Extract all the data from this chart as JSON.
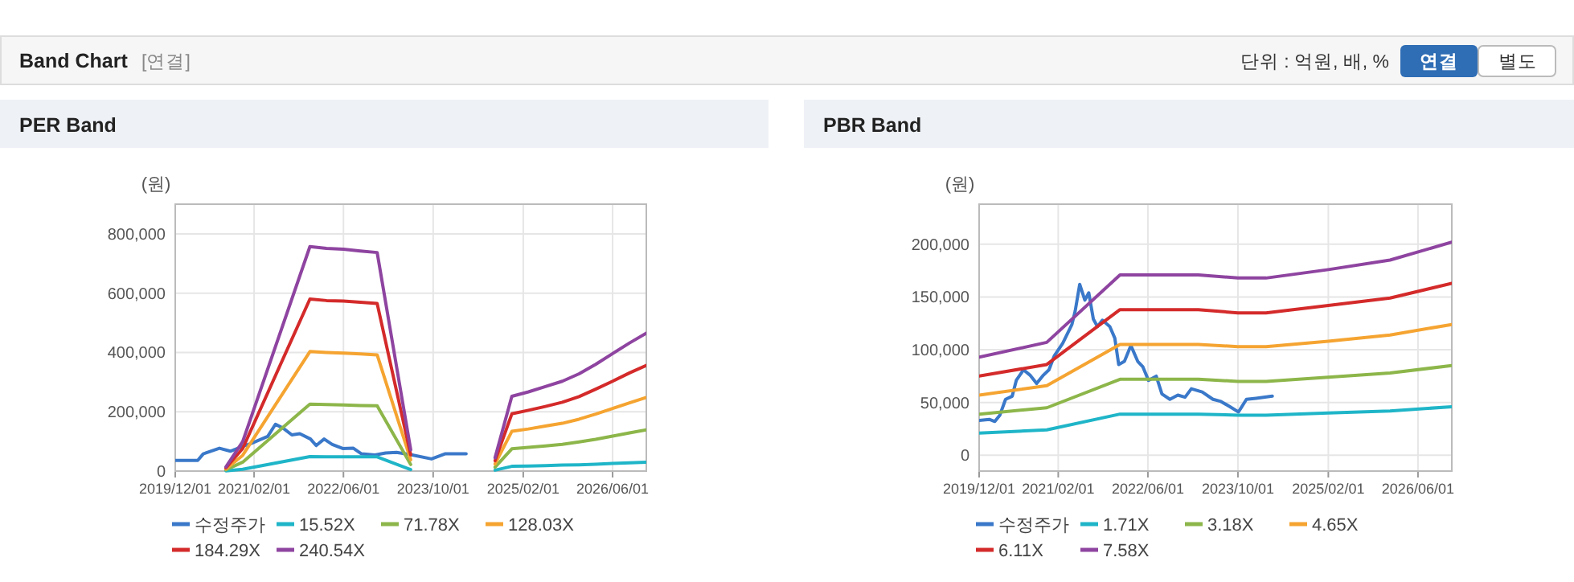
{
  "chart_data": [
    {
      "type": "line",
      "title": "PER Band",
      "ylabel": "(원)",
      "annotations": [
        "Band Chart",
        "[연결]",
        "단위 : 억원, 배, %",
        "연결",
        "별도"
      ],
      "xlim": [
        "2019-12-01",
        "2026-12-01"
      ],
      "ylim": [
        0,
        900000
      ],
      "xticks": [
        {
          "value": "2019-12-01",
          "label": "2019/12/01"
        },
        {
          "value": "2021-02-01",
          "label": "2021/02/01"
        },
        {
          "value": "2022-06-01",
          "label": "2022/06/01"
        },
        {
          "value": "2023-10-01",
          "label": "2023/10/01"
        },
        {
          "value": "2025-02-01",
          "label": "2025/02/01"
        },
        {
          "value": "2026-06-01",
          "label": "2026/06/01"
        }
      ],
      "yticks": [
        0,
        {
          "value": 200000,
          "label": "200,000"
        },
        {
          "value": 400000,
          "label": "400,000"
        },
        {
          "value": 600000,
          "label": "600,000"
        },
        {
          "value": 800000,
          "label": "800,000"
        }
      ],
      "grid": true,
      "legend": "bottom",
      "x": [
        "2020-09-01",
        "2020-12-01",
        "2021-12-01",
        "2022-03-01",
        "2022-06-01",
        "2022-09-01",
        "2022-12-01",
        "2023-06-01",
        "2024-03-01",
        "2024-09-01",
        "2024-12-01",
        "2025-03-01",
        "2025-06-01",
        "2025-09-01",
        "2025-12-01",
        "2026-03-01",
        "2026-06-01",
        "2026-09-01",
        "2026-12-01"
      ],
      "series": [
        {
          "name": "수정주가",
          "color": "#3a78c9",
          "x": [
            "2019-12-01",
            "2020-04-01",
            "2020-05-01",
            "2020-07-28",
            "2020-09-25",
            "2020-11-22",
            "2021-01-19",
            "2021-04-16",
            "2021-05-28",
            "2021-07-10",
            "2021-08-25",
            "2021-10-07",
            "2021-12-04",
            "2022-01-04",
            "2022-02-16",
            "2022-04-01",
            "2022-05-28",
            "2022-07-25",
            "2022-09-07",
            "2022-11-19",
            "2023-01-16",
            "2023-03-16",
            "2023-06-10",
            "2023-09-22",
            "2023-12-04",
            "2024-03-28"
          ],
          "values": [
            36000,
            36000,
            58000,
            77000,
            67000,
            81000,
            94000,
            117000,
            158000,
            144000,
            122000,
            126000,
            108000,
            86000,
            108000,
            90000,
            76000,
            77000,
            58000,
            54000,
            61000,
            63000,
            54000,
            41000,
            58000,
            58000
          ]
        },
        {
          "name": "15.52X",
          "color": "#1fb5c8",
          "values": [
            1000,
            6000,
            49000,
            48000,
            48000,
            48000,
            48000,
            5000,
            null,
            3000,
            16000,
            17000,
            18000,
            20000,
            21000,
            23000,
            26000,
            28000,
            30000
          ]
        },
        {
          "name": "71.78X",
          "color": "#8db64a",
          "values": [
            4000,
            30000,
            226000,
            224000,
            223000,
            221000,
            220000,
            22000,
            null,
            13000,
            75000,
            80000,
            85000,
            90000,
            98000,
            107000,
            118000,
            129000,
            139000
          ]
        },
        {
          "name": "128.03X",
          "color": "#f5a431",
          "values": [
            7000,
            53000,
            403000,
            400000,
            398000,
            395000,
            392000,
            38000,
            null,
            24000,
            134000,
            142000,
            152000,
            161000,
            175000,
            192000,
            211000,
            230000,
            248000
          ]
        },
        {
          "name": "184.29X",
          "color": "#d42a2a",
          "values": [
            11000,
            76000,
            580000,
            575000,
            573000,
            569000,
            565000,
            55000,
            null,
            35000,
            193000,
            205000,
            218000,
            232000,
            251000,
            276000,
            303000,
            331000,
            356000
          ]
        },
        {
          "name": "240.54X",
          "color": "#8e44a0",
          "values": [
            14000,
            99000,
            757000,
            751000,
            748000,
            742000,
            737000,
            72000,
            null,
            45000,
            252000,
            267000,
            285000,
            303000,
            328000,
            360000,
            396000,
            432000,
            465000
          ]
        }
      ]
    },
    {
      "type": "line",
      "title": "PBR Band",
      "ylabel": "(원)",
      "xlim": [
        "2019-12-01",
        "2026-12-01"
      ],
      "ylim": [
        -15000,
        238000
      ],
      "xticks": [
        {
          "value": "2019-12-01",
          "label": "2019/12/01"
        },
        {
          "value": "2021-02-01",
          "label": "2021/02/01"
        },
        {
          "value": "2022-06-01",
          "label": "2022/06/01"
        },
        {
          "value": "2023-10-01",
          "label": "2023/10/01"
        },
        {
          "value": "2025-02-01",
          "label": "2025/02/01"
        },
        {
          "value": "2026-06-01",
          "label": "2026/06/01"
        }
      ],
      "yticks": [
        0,
        {
          "value": 50000,
          "label": "50,000"
        },
        {
          "value": 100000,
          "label": "100,000"
        },
        {
          "value": 150000,
          "label": "150,000"
        },
        {
          "value": 200000,
          "label": "200,000"
        }
      ],
      "grid": true,
      "legend": "bottom",
      "x": [
        "2019-12-01",
        "2020-12-01",
        "2022-01-01",
        "2023-03-01",
        "2023-10-01",
        "2024-03-01",
        "2025-02-01",
        "2026-01-01",
        "2026-12-01"
      ],
      "series": [
        {
          "name": "수정주가",
          "color": "#3a78c9",
          "x": [
            "2019-12-01",
            "2020-01-25",
            "2020-02-24",
            "2020-03-22",
            "2020-04-22",
            "2020-05-28",
            "2020-06-19",
            "2020-07-28",
            "2020-09-01",
            "2020-10-07",
            "2020-11-13",
            "2020-12-13",
            "2021-01-10",
            "2021-02-25",
            "2021-04-16",
            "2021-05-04",
            "2021-05-28",
            "2021-06-25",
            "2021-07-16",
            "2021-08-10",
            "2021-09-01",
            "2021-09-28",
            "2021-11-07",
            "2021-12-04",
            "2021-12-25",
            "2022-01-25",
            "2022-03-01",
            "2022-04-07",
            "2022-05-04",
            "2022-06-04",
            "2022-07-16",
            "2022-08-16",
            "2022-09-28",
            "2022-11-10",
            "2022-12-19",
            "2023-01-22",
            "2023-03-22",
            "2023-05-19",
            "2023-07-01",
            "2023-08-19",
            "2023-10-04",
            "2023-11-16",
            "2024-01-07",
            "2024-04-04"
          ],
          "values": [
            33000,
            34000,
            32000,
            38000,
            53000,
            56000,
            71000,
            81000,
            76000,
            68000,
            76000,
            81000,
            94000,
            106000,
            124000,
            137000,
            162000,
            147000,
            154000,
            129000,
            122000,
            128000,
            122000,
            111000,
            86000,
            89000,
            104000,
            89000,
            84000,
            71000,
            75000,
            58000,
            53000,
            57000,
            55000,
            63000,
            60000,
            53000,
            51000,
            46000,
            41000,
            53000,
            54000,
            56000
          ]
        },
        {
          "name": "1.71X",
          "color": "#1fb5c8",
          "values": [
            21000,
            24000,
            39000,
            39000,
            38000,
            38000,
            40000,
            42000,
            46000
          ]
        },
        {
          "name": "3.18X",
          "color": "#8db64a",
          "values": [
            39000,
            45000,
            72000,
            72000,
            70000,
            70000,
            74000,
            78000,
            85000
          ]
        },
        {
          "name": "4.65X",
          "color": "#f5a431",
          "values": [
            57000,
            66000,
            105000,
            105000,
            103000,
            103000,
            108000,
            114000,
            124000
          ]
        },
        {
          "name": "6.11X",
          "color": "#d42a2a",
          "values": [
            75000,
            86000,
            138000,
            138000,
            135000,
            135000,
            142000,
            149000,
            163000
          ]
        },
        {
          "name": "7.58X",
          "color": "#8e44a0",
          "values": [
            93000,
            107000,
            171000,
            171000,
            168000,
            168000,
            176000,
            185000,
            202000
          ]
        }
      ]
    }
  ]
}
